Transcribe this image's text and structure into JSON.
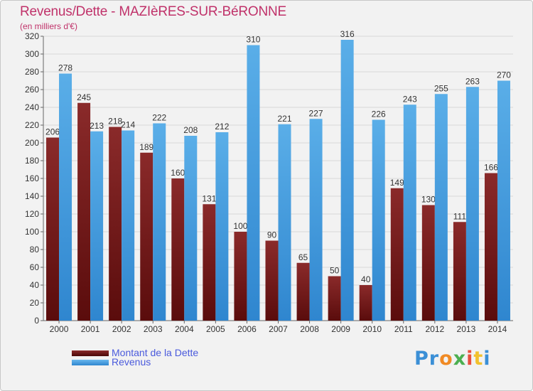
{
  "chart_data": {
    "type": "bar",
    "title": "Revenus/Dette - MAZIèRES-SUR-BéRONNE",
    "subtitle": "(en milliers d'€)",
    "categories": [
      "2000",
      "2001",
      "2002",
      "2003",
      "2004",
      "2005",
      "2006",
      "2007",
      "2008",
      "2009",
      "2010",
      "2011",
      "2012",
      "2013",
      "2014"
    ],
    "series": [
      {
        "name": "Montant de la Dette",
        "color": "#7a1c1c",
        "values": [
          206,
          245,
          218,
          189,
          160,
          131,
          100,
          90,
          65,
          50,
          40,
          149,
          130,
          111,
          166
        ]
      },
      {
        "name": "Revenus",
        "color": "#4ea3e3",
        "values": [
          278,
          213,
          214,
          222,
          208,
          212,
          310,
          221,
          227,
          316,
          226,
          243,
          255,
          263,
          270
        ]
      }
    ],
    "ylim": [
      0,
      320
    ],
    "yticks": [
      0,
      20,
      40,
      60,
      80,
      100,
      120,
      140,
      160,
      180,
      200,
      220,
      240,
      260,
      280,
      300,
      320
    ],
    "grid": true,
    "legend": "bottom-left"
  },
  "logo": {
    "text": "Proxiti",
    "colors": [
      "#3b8fd6",
      "#3b8fd6",
      "#f08a24",
      "#4caf50",
      "#e94e3d",
      "#f2c12e",
      "#3b8fd6"
    ]
  }
}
